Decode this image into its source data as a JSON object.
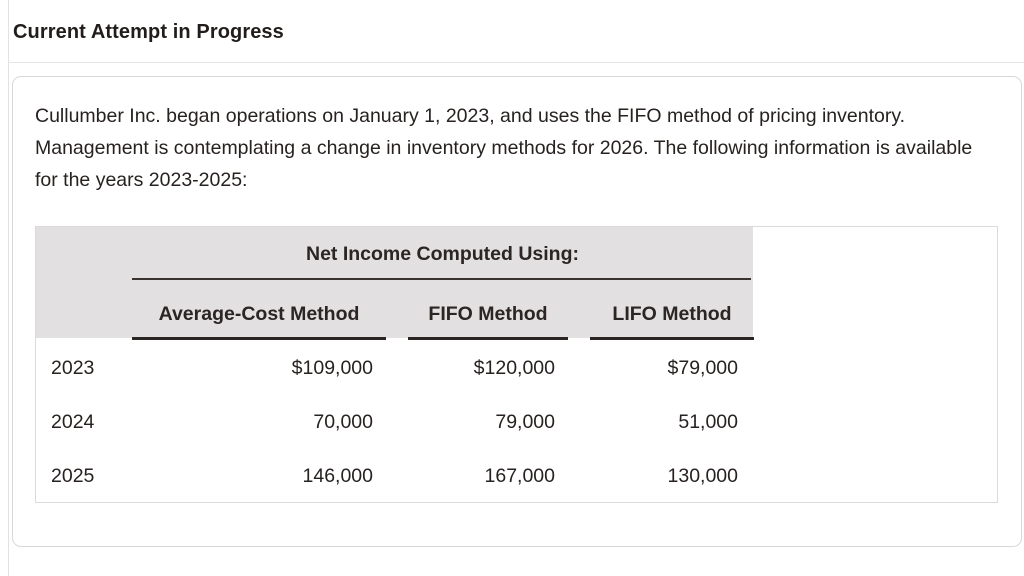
{
  "header": {
    "title": "Current Attempt in Progress"
  },
  "panel": {
    "paragraph": "Cullumber Inc. began operations on January 1, 2023, and uses the FIFO method of pricing inventory. Management is contemplating a change in inventory methods for 2026. The following information is available for the years 2023-2025:"
  },
  "table": {
    "spanner": "Net Income Computed Using:",
    "columns": [
      "Average-Cost Method",
      "FIFO Method",
      "LIFO Method"
    ],
    "rows": [
      {
        "year": "2023",
        "values": [
          "$109,000",
          "$120,000",
          "$79,000"
        ]
      },
      {
        "year": "2024",
        "values": [
          "70,000",
          "79,000",
          "51,000"
        ]
      },
      {
        "year": "2025",
        "values": [
          "146,000",
          "167,000",
          "130,000"
        ]
      }
    ]
  },
  "colors": {
    "text": "#272220",
    "table_header_background": "#e2e0e0",
    "panel_border": "#d9d7d7",
    "table_border": "#dcdada",
    "dark_rule": "#2b2624"
  }
}
